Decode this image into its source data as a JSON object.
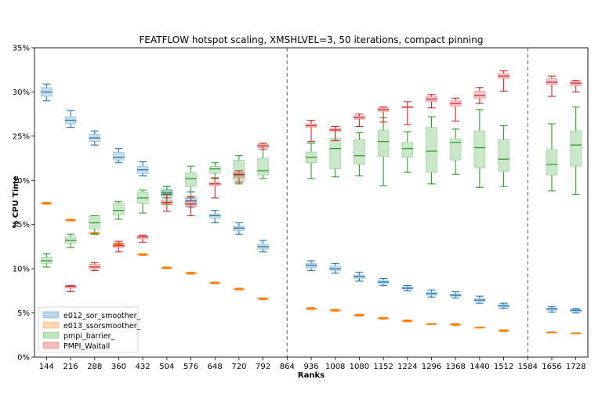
{
  "chart_data": {
    "type": "boxplot",
    "title": "FEATFLOW hotspot scaling, XMSHLVEL=3, 50 iterations, compact pinning",
    "xlabel": "Ranks",
    "ylabel": "% CPU Time",
    "ylim": [
      0,
      35
    ],
    "yticks": [
      0,
      5,
      10,
      15,
      20,
      25,
      30,
      35
    ],
    "ytick_labels": [
      "0%",
      "5%",
      "10%",
      "15%",
      "20%",
      "25%",
      "30%",
      "35%"
    ],
    "xticks": [
      144,
      216,
      288,
      360,
      432,
      504,
      576,
      648,
      720,
      792,
      864,
      936,
      1008,
      1080,
      1152,
      1224,
      1296,
      1368,
      1440,
      1512,
      1584,
      1656,
      1728
    ],
    "dividers": [
      864,
      1584
    ],
    "legend_position": "lower-left",
    "series": [
      {
        "name": "e012_sor_smoother_",
        "color": "#1f77b4",
        "boxes": [
          {
            "x": 144,
            "min": 29.0,
            "q1": 29.5,
            "med": 30.0,
            "q3": 30.5,
            "max": 30.9
          },
          {
            "x": 216,
            "min": 26.0,
            "q1": 26.4,
            "med": 26.8,
            "q3": 27.2,
            "max": 27.9
          },
          {
            "x": 288,
            "min": 24.0,
            "q1": 24.4,
            "med": 24.8,
            "q3": 25.2,
            "max": 25.6
          },
          {
            "x": 360,
            "min": 22.0,
            "q1": 22.3,
            "med": 22.6,
            "q3": 23.2,
            "max": 23.6
          },
          {
            "x": 432,
            "min": 20.5,
            "q1": 20.8,
            "med": 21.2,
            "q3": 21.6,
            "max": 22.1
          },
          {
            "x": 504,
            "min": 18.0,
            "q1": 18.3,
            "med": 18.6,
            "q3": 18.9,
            "max": 19.3
          },
          {
            "x": 576,
            "min": 17.0,
            "q1": 17.4,
            "med": 17.7,
            "q3": 18.1,
            "max": 18.7
          },
          {
            "x": 648,
            "min": 15.2,
            "q1": 15.7,
            "med": 16.0,
            "q3": 16.2,
            "max": 16.6
          },
          {
            "x": 720,
            "min": 13.9,
            "q1": 14.3,
            "med": 14.6,
            "q3": 14.8,
            "max": 15.2
          },
          {
            "x": 792,
            "min": 11.9,
            "q1": 12.2,
            "med": 12.5,
            "q3": 12.8,
            "max": 13.2
          },
          {
            "x": 936,
            "min": 9.8,
            "q1": 10.1,
            "med": 10.4,
            "q3": 10.6,
            "max": 10.9
          },
          {
            "x": 1008,
            "min": 9.5,
            "q1": 9.8,
            "med": 10.0,
            "q3": 10.3,
            "max": 10.6
          },
          {
            "x": 1080,
            "min": 8.6,
            "q1": 8.9,
            "med": 9.1,
            "q3": 9.3,
            "max": 9.6
          },
          {
            "x": 1152,
            "min": 8.1,
            "q1": 8.3,
            "med": 8.5,
            "q3": 8.7,
            "max": 8.9
          },
          {
            "x": 1224,
            "min": 7.5,
            "q1": 7.7,
            "med": 7.8,
            "q3": 7.95,
            "max": 8.1
          },
          {
            "x": 1296,
            "min": 6.8,
            "q1": 7.0,
            "med": 7.2,
            "q3": 7.35,
            "max": 7.6
          },
          {
            "x": 1368,
            "min": 6.7,
            "q1": 6.9,
            "med": 7.0,
            "q3": 7.15,
            "max": 7.4
          },
          {
            "x": 1440,
            "min": 6.1,
            "q1": 6.3,
            "med": 6.45,
            "q3": 6.6,
            "max": 6.9
          },
          {
            "x": 1512,
            "min": 5.5,
            "q1": 5.65,
            "med": 5.8,
            "q3": 5.95,
            "max": 6.1
          },
          {
            "x": 1656,
            "min": 5.1,
            "q1": 5.3,
            "med": 5.45,
            "q3": 5.55,
            "max": 5.7
          },
          {
            "x": 1728,
            "min": 5.0,
            "q1": 5.15,
            "med": 5.3,
            "q3": 5.4,
            "max": 5.5
          }
        ]
      },
      {
        "name": "e013_ssorsmoother_",
        "color": "#ff7f0e",
        "boxes": [
          {
            "x": 144,
            "min": 17.3,
            "q1": 17.35,
            "med": 17.4,
            "q3": 17.45,
            "max": 17.5
          },
          {
            "x": 216,
            "min": 15.4,
            "q1": 15.45,
            "med": 15.5,
            "q3": 15.55,
            "max": 15.6
          },
          {
            "x": 288,
            "min": 13.9,
            "q1": 13.95,
            "med": 14.0,
            "q3": 14.05,
            "max": 14.1
          },
          {
            "x": 360,
            "min": 12.7,
            "q1": 12.75,
            "med": 12.8,
            "q3": 12.85,
            "max": 12.9
          },
          {
            "x": 432,
            "min": 11.5,
            "q1": 11.55,
            "med": 11.6,
            "q3": 11.65,
            "max": 11.7
          },
          {
            "x": 504,
            "min": 10.0,
            "q1": 10.05,
            "med": 10.1,
            "q3": 10.15,
            "max": 10.2
          },
          {
            "x": 576,
            "min": 9.4,
            "q1": 9.45,
            "med": 9.5,
            "q3": 9.55,
            "max": 9.6
          },
          {
            "x": 648,
            "min": 8.3,
            "q1": 8.35,
            "med": 8.4,
            "q3": 8.45,
            "max": 8.5
          },
          {
            "x": 720,
            "min": 7.6,
            "q1": 7.65,
            "med": 7.7,
            "q3": 7.75,
            "max": 7.8
          },
          {
            "x": 792,
            "min": 6.5,
            "q1": 6.55,
            "med": 6.6,
            "q3": 6.65,
            "max": 6.7
          },
          {
            "x": 936,
            "min": 5.4,
            "q1": 5.45,
            "med": 5.5,
            "q3": 5.55,
            "max": 5.6
          },
          {
            "x": 1008,
            "min": 5.2,
            "q1": 5.25,
            "med": 5.3,
            "q3": 5.35,
            "max": 5.4
          },
          {
            "x": 1080,
            "min": 4.65,
            "q1": 4.7,
            "med": 4.75,
            "q3": 4.8,
            "max": 4.85
          },
          {
            "x": 1152,
            "min": 4.3,
            "q1": 4.35,
            "med": 4.4,
            "q3": 4.45,
            "max": 4.5
          },
          {
            "x": 1224,
            "min": 4.0,
            "q1": 4.05,
            "med": 4.1,
            "q3": 4.15,
            "max": 4.2
          },
          {
            "x": 1296,
            "min": 3.7,
            "q1": 3.72,
            "med": 3.75,
            "q3": 3.78,
            "max": 3.8
          },
          {
            "x": 1368,
            "min": 3.6,
            "q1": 3.65,
            "med": 3.7,
            "q3": 3.75,
            "max": 3.8
          },
          {
            "x": 1440,
            "min": 3.3,
            "q1": 3.32,
            "med": 3.35,
            "q3": 3.38,
            "max": 3.4
          },
          {
            "x": 1512,
            "min": 2.9,
            "q1": 2.95,
            "med": 3.0,
            "q3": 3.05,
            "max": 3.1
          },
          {
            "x": 1656,
            "min": 2.75,
            "q1": 2.78,
            "med": 2.8,
            "q3": 2.82,
            "max": 2.85
          },
          {
            "x": 1728,
            "min": 2.65,
            "q1": 2.68,
            "med": 2.7,
            "q3": 2.72,
            "max": 2.75
          }
        ]
      },
      {
        "name": "pmpi_barrier_",
        "color": "#2ca02c",
        "boxes": [
          {
            "x": 144,
            "min": 10.2,
            "q1": 10.6,
            "med": 10.9,
            "q3": 11.3,
            "max": 11.7
          },
          {
            "x": 216,
            "min": 12.4,
            "q1": 12.9,
            "med": 13.2,
            "q3": 13.6,
            "max": 13.9
          },
          {
            "x": 288,
            "min": 13.9,
            "q1": 14.5,
            "med": 15.2,
            "q3": 16.0,
            "max": 16.0
          },
          {
            "x": 360,
            "min": 15.6,
            "q1": 16.1,
            "med": 16.6,
            "q3": 17.4,
            "max": 17.6
          },
          {
            "x": 432,
            "min": 16.3,
            "q1": 17.4,
            "med": 18.0,
            "q3": 18.7,
            "max": 18.9
          },
          {
            "x": 504,
            "min": 17.3,
            "q1": 18.0,
            "med": 18.4,
            "q3": 19.0,
            "max": 19.3
          },
          {
            "x": 576,
            "min": 18.0,
            "q1": 19.3,
            "med": 20.2,
            "q3": 20.9,
            "max": 21.6
          },
          {
            "x": 648,
            "min": 20.2,
            "q1": 20.8,
            "med": 21.3,
            "q3": 21.6,
            "max": 22.0
          },
          {
            "x": 720,
            "min": 19.6,
            "q1": 19.9,
            "med": 20.6,
            "q3": 22.3,
            "max": 22.8
          },
          {
            "x": 792,
            "min": 20.2,
            "q1": 20.6,
            "med": 21.1,
            "q3": 22.5,
            "max": 23.9
          },
          {
            "x": 936,
            "min": 20.2,
            "q1": 22.0,
            "med": 22.6,
            "q3": 23.2,
            "max": 24.2
          },
          {
            "x": 1008,
            "min": 20.4,
            "q1": 21.3,
            "med": 23.6,
            "q3": 24.8,
            "max": 26.1
          },
          {
            "x": 1080,
            "min": 20.5,
            "q1": 21.8,
            "med": 22.8,
            "q3": 24.6,
            "max": 25.4
          },
          {
            "x": 1152,
            "min": 19.4,
            "q1": 22.7,
            "med": 24.4,
            "q3": 25.7,
            "max": 27.1
          },
          {
            "x": 1224,
            "min": 20.9,
            "q1": 22.6,
            "med": 23.6,
            "q3": 24.3,
            "max": 25.5
          },
          {
            "x": 1296,
            "min": 19.6,
            "q1": 20.9,
            "med": 23.3,
            "q3": 26.0,
            "max": 27.2
          },
          {
            "x": 1368,
            "min": 20.7,
            "q1": 22.3,
            "med": 24.3,
            "q3": 24.7,
            "max": 25.8
          },
          {
            "x": 1440,
            "min": 19.2,
            "q1": 21.4,
            "med": 23.7,
            "q3": 25.6,
            "max": 28.0
          },
          {
            "x": 1512,
            "min": 19.3,
            "q1": 21.0,
            "med": 22.4,
            "q3": 24.6,
            "max": 26.2
          },
          {
            "x": 1656,
            "min": 18.8,
            "q1": 20.6,
            "med": 21.8,
            "q3": 23.5,
            "max": 26.4
          },
          {
            "x": 1728,
            "min": 18.4,
            "q1": 21.6,
            "med": 24.0,
            "q3": 25.6,
            "max": 28.3
          }
        ]
      },
      {
        "name": "PMPI_Waitall",
        "color": "#d62728",
        "boxes": [
          {
            "x": 216,
            "min": 7.4,
            "q1": 7.8,
            "med": 8.0,
            "q3": 8.1,
            "max": 8.1
          },
          {
            "x": 288,
            "min": 9.8,
            "q1": 10.0,
            "med": 10.2,
            "q3": 10.5,
            "max": 10.7
          },
          {
            "x": 360,
            "min": 11.9,
            "q1": 12.4,
            "med": 12.6,
            "q3": 12.8,
            "max": 13.1
          },
          {
            "x": 432,
            "min": 13.0,
            "q1": 13.4,
            "med": 13.6,
            "q3": 13.7,
            "max": 13.8
          },
          {
            "x": 504,
            "min": 16.5,
            "q1": 17.2,
            "med": 17.5,
            "q3": 17.8,
            "max": 18.4
          },
          {
            "x": 576,
            "min": 16.0,
            "q1": 17.0,
            "med": 17.3,
            "q3": 17.7,
            "max": 18.2
          },
          {
            "x": 648,
            "min": 18.0,
            "q1": 19.4,
            "med": 19.6,
            "q3": 19.8,
            "max": 20.3
          },
          {
            "x": 720,
            "min": 19.8,
            "q1": 20.3,
            "med": 20.7,
            "q3": 20.9,
            "max": 21.1
          },
          {
            "x": 792,
            "min": 23.5,
            "q1": 23.7,
            "med": 23.9,
            "q3": 24.1,
            "max": 24.2
          },
          {
            "x": 936,
            "min": 24.4,
            "q1": 26.0,
            "med": 26.2,
            "q3": 26.4,
            "max": 26.8
          },
          {
            "x": 1008,
            "min": 24.5,
            "q1": 25.5,
            "med": 25.7,
            "q3": 25.9,
            "max": 26.1
          },
          {
            "x": 1080,
            "min": 26.1,
            "q1": 26.9,
            "med": 27.1,
            "q3": 27.3,
            "max": 27.5
          },
          {
            "x": 1152,
            "min": 26.6,
            "q1": 27.8,
            "med": 28.0,
            "q3": 28.2,
            "max": 28.3
          },
          {
            "x": 1224,
            "min": 26.3,
            "q1": 28.2,
            "med": 28.3,
            "q3": 28.3,
            "max": 28.9
          },
          {
            "x": 1296,
            "min": 28.2,
            "q1": 28.9,
            "med": 29.2,
            "q3": 29.5,
            "max": 29.7
          },
          {
            "x": 1368,
            "min": 26.7,
            "q1": 28.4,
            "med": 28.7,
            "q3": 29.0,
            "max": 29.3
          },
          {
            "x": 1440,
            "min": 28.7,
            "q1": 29.3,
            "med": 29.6,
            "q3": 30.1,
            "max": 30.5
          },
          {
            "x": 1512,
            "min": 30.1,
            "q1": 31.5,
            "med": 31.8,
            "q3": 32.1,
            "max": 32.4
          },
          {
            "x": 1656,
            "min": 29.5,
            "q1": 30.8,
            "med": 31.1,
            "q3": 31.5,
            "max": 31.8
          },
          {
            "x": 1728,
            "min": 30.0,
            "q1": 30.7,
            "med": 31.0,
            "q3": 31.2,
            "max": 31.3
          }
        ]
      }
    ]
  }
}
